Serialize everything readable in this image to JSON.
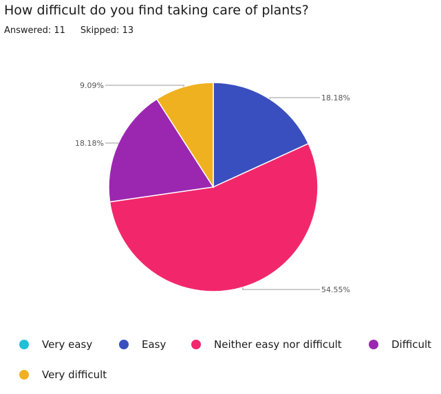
{
  "header": {
    "title": "How difficult do you find taking care of plants?",
    "answered": "Answered: 11",
    "skipped": "Skipped: 13"
  },
  "chart_data": {
    "type": "pie",
    "title": "How difficult do you find taking care of plants?",
    "categories": [
      "Very easy",
      "Easy",
      "Neither easy nor difficult",
      "Difficult",
      "Very difficult"
    ],
    "values": [
      0,
      18.18,
      54.55,
      18.18,
      9.09
    ],
    "labels": [
      "",
      "18.18%",
      "54.55%",
      "18.18%",
      "9.09%"
    ],
    "colors": [
      "#20c0d8",
      "#3a4fbf",
      "#f2276b",
      "#9b27b0",
      "#f0b120"
    ],
    "legend_placement": "bottom"
  }
}
